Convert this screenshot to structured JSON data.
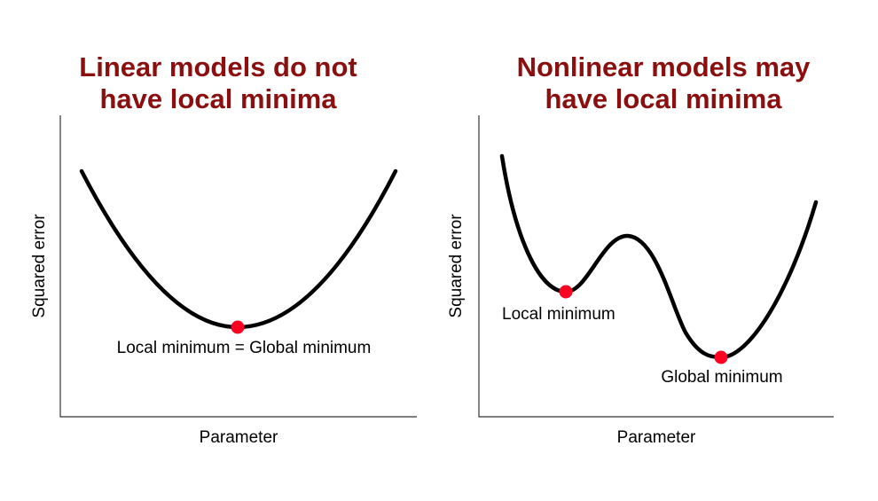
{
  "colors": {
    "title": "#8b0f0f",
    "curve": "#000000",
    "marker": "#ff0022",
    "axis": "#333333"
  },
  "panels": [
    {
      "title_line1": "Linear models do not",
      "title_line2": "have local minima",
      "ylabel": "Squared error",
      "xlabel": "Parameter",
      "annotations": [
        "Local minimum = Global minimum"
      ]
    },
    {
      "title_line1": "Nonlinear models may",
      "title_line2": "have local minima",
      "ylabel": "Squared error",
      "xlabel": "Parameter",
      "annotations": [
        "Local minimum",
        "Global minimum"
      ]
    }
  ]
}
